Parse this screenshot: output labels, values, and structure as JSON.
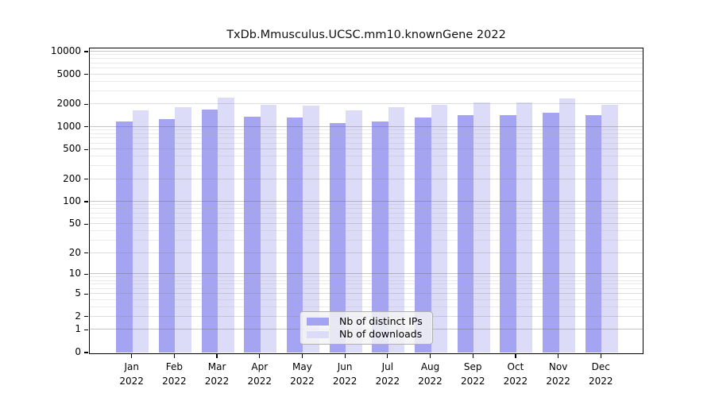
{
  "page": {
    "background": "#ffffff"
  },
  "chart_data": {
    "type": "bar",
    "title": "TxDb.Mmusculus.UCSC.mm10.knownGene 2022",
    "categories": [
      "Jan",
      "Feb",
      "Mar",
      "Apr",
      "May",
      "Jun",
      "Jul",
      "Aug",
      "Sep",
      "Oct",
      "Nov",
      "Dec"
    ],
    "tick_year": "2022",
    "series": [
      {
        "name": "Nb of distinct IPs",
        "color": "#a4a4f2",
        "values": [
          1150,
          1240,
          1660,
          1330,
          1320,
          1120,
          1160,
          1300,
          1400,
          1410,
          1530,
          1430
        ]
      },
      {
        "name": "Nb of downloads",
        "color": "#dcdcf9",
        "values": [
          1640,
          1780,
          2400,
          1930,
          1870,
          1640,
          1820,
          1930,
          2060,
          2110,
          2330,
          1930
        ]
      }
    ],
    "y_axis": {
      "scale": "log10(1+y)",
      "range": [
        0,
        10000
      ],
      "ticks": [
        10000,
        5000,
        2000,
        1000,
        500,
        200,
        100,
        50,
        20,
        10,
        5,
        2,
        1,
        0
      ],
      "grid": "log-minor horizontal"
    },
    "legend": {
      "position": "bottom-center",
      "entries": [
        "Nb of distinct IPs",
        "Nb of downloads"
      ]
    }
  }
}
